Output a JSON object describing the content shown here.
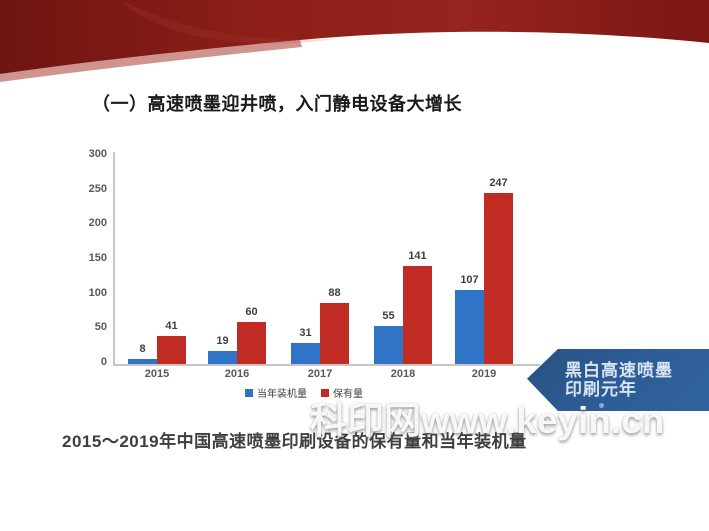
{
  "slide": {
    "title": "（一）高速喷墨迎井喷，入门静电设备大增长",
    "caption": "2015～2019年中国高速喷墨印刷设备的保有量和当年装机量",
    "banner": {
      "line1": "黑白高速喷墨",
      "line2": "印刷元年"
    },
    "watermark": "科印网www.keyin.cn"
  },
  "colors": {
    "ribbon_dark": "#6e1512",
    "ribbon_mid": "#96231d",
    "bar_blue": "#2f74c6",
    "bar_red": "#c02b23",
    "banner_blue": "#2d5c95",
    "axis_gray": "#c6c6c6",
    "label_gray": "#595959"
  },
  "chart_data": {
    "type": "bar",
    "title": "",
    "xlabel": "",
    "ylabel": "",
    "categories": [
      "2015",
      "2016",
      "2017",
      "2018",
      "2019"
    ],
    "series": [
      {
        "name": "当年装机量",
        "color": "#2f74c6",
        "values": [
          8,
          19,
          31,
          55,
          107
        ]
      },
      {
        "name": "保有量",
        "color": "#c02b23",
        "values": [
          41,
          60,
          88,
          141,
          247
        ]
      }
    ],
    "ylim": [
      0,
      300
    ],
    "yticks": [
      0,
      50,
      100,
      150,
      200,
      250,
      300
    ],
    "grid": false,
    "legend_position": "bottom"
  }
}
